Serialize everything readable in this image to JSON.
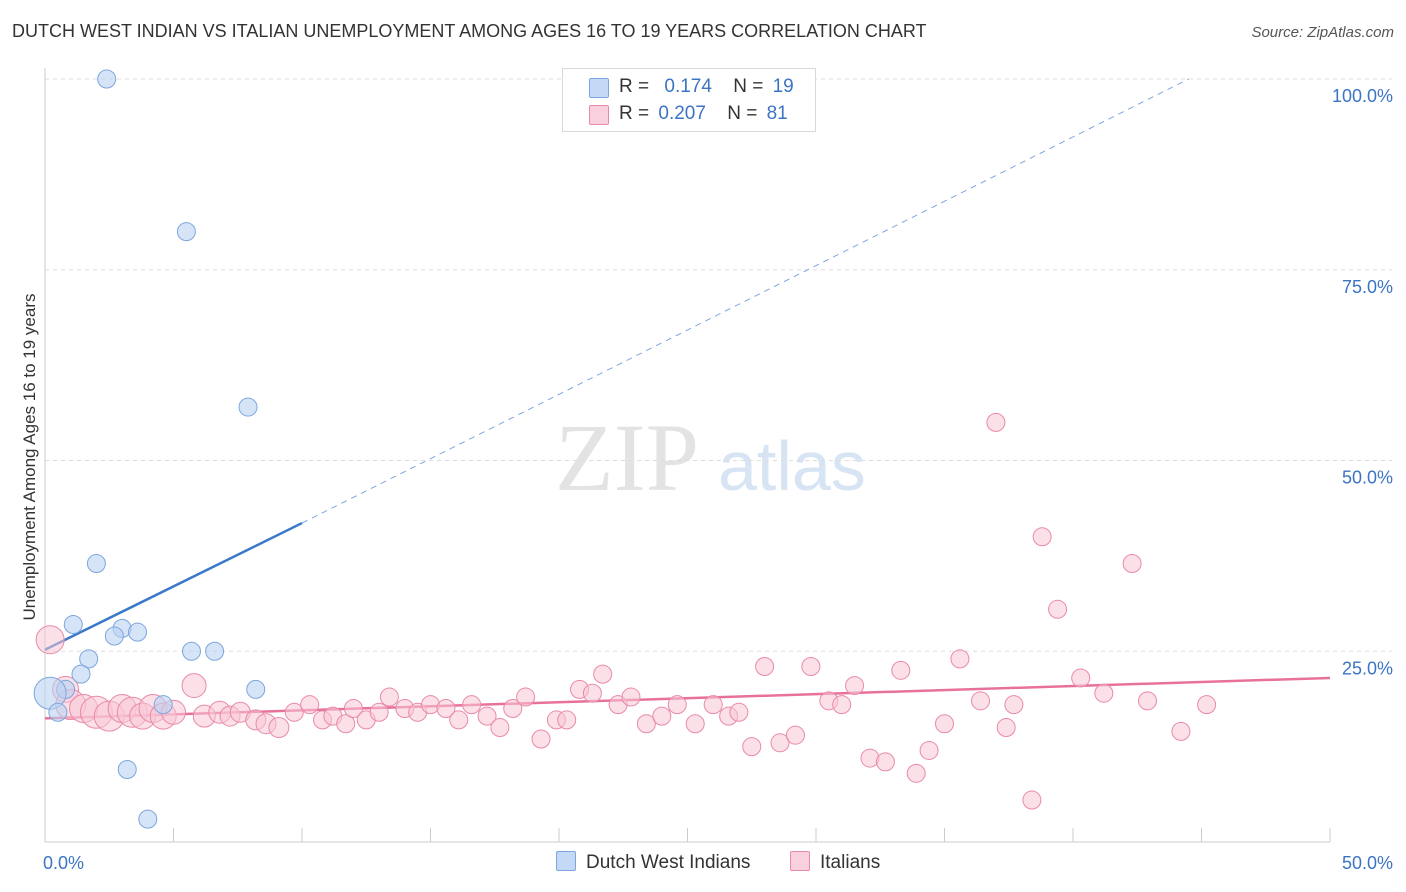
{
  "header": {
    "title": "DUTCH WEST INDIAN VS ITALIAN UNEMPLOYMENT AMONG AGES 16 TO 19 YEARS CORRELATION CHART",
    "source": "Source: ZipAtlas.com"
  },
  "watermark": {
    "zip": "ZIP",
    "atlas": "atlas"
  },
  "legend": {
    "rows": [
      {
        "r_label": "R =",
        "r_value": "0.174",
        "n_label": "N =",
        "n_value": "19",
        "color": "#a9c8f0"
      },
      {
        "r_label": "R =",
        "r_value": "0.207",
        "n_label": "N =",
        "n_value": "81",
        "color": "#f7b6c9"
      }
    ]
  },
  "colors": {
    "blue_fill": "#b9d2f2",
    "blue_stroke": "#7ea6dc",
    "blue_line": "#3a78c9",
    "pink_fill": "#f8c6d5",
    "pink_stroke": "#e98aa8",
    "pink_line": "#e8719b",
    "axis_text": "#3c74c4",
    "grid": "#dddddd"
  },
  "chart_data": {
    "type": "scatter",
    "title": "DUTCH WEST INDIAN VS ITALIAN UNEMPLOYMENT AMONG AGES 16 TO 19 YEARS CORRELATION CHART",
    "xlabel": "",
    "ylabel": "Unemployment Among Ages 16 to 19 years",
    "xlim": [
      0,
      50
    ],
    "ylim": [
      0,
      100
    ],
    "x_tick_labels": [
      "0.0%",
      "50.0%"
    ],
    "y_tick_labels": [
      "25.0%",
      "50.0%",
      "75.0%",
      "100.0%"
    ],
    "y_ticks": [
      25,
      50,
      75,
      100
    ],
    "series": [
      {
        "name": "Dutch West Indians",
        "r": 0.174,
        "n": 19,
        "trend": {
          "x0": 0,
          "y0": 25.2,
          "x1": 10,
          "y1": 41.8,
          "dash_to_x": 44.5,
          "dash_to_y": 100
        },
        "points": [
          [
            2.4,
            100
          ],
          [
            5.5,
            80
          ],
          [
            7.9,
            57
          ],
          [
            2.0,
            36.5
          ],
          [
            1.1,
            28.5
          ],
          [
            3.0,
            28
          ],
          [
            3.6,
            27.5
          ],
          [
            2.7,
            27
          ],
          [
            1.7,
            24
          ],
          [
            5.7,
            25
          ],
          [
            6.6,
            25
          ],
          [
            1.4,
            22
          ],
          [
            0.8,
            20
          ],
          [
            4.6,
            18
          ],
          [
            8.2,
            20
          ],
          [
            0.2,
            19.5
          ],
          [
            0.5,
            17
          ],
          [
            3.2,
            9.5
          ],
          [
            4.0,
            3
          ]
        ],
        "sizes": [
          9,
          9,
          9,
          9,
          9,
          9,
          9,
          9,
          9,
          9,
          9,
          9,
          9,
          9,
          9,
          16,
          9,
          9,
          9
        ]
      },
      {
        "name": "Italians",
        "r": 0.207,
        "n": 81,
        "trend": {
          "x0": 0,
          "y0": 16.2,
          "x1": 50,
          "y1": 21.5
        },
        "points": [
          [
            0.2,
            26.5
          ],
          [
            0.8,
            20
          ],
          [
            1.0,
            18
          ],
          [
            1.5,
            17.5
          ],
          [
            2.0,
            17
          ],
          [
            2.5,
            16.5
          ],
          [
            3.0,
            17.5
          ],
          [
            3.4,
            17
          ],
          [
            3.8,
            16.5
          ],
          [
            4.2,
            17.5
          ],
          [
            4.6,
            16.5
          ],
          [
            5.0,
            17
          ],
          [
            5.8,
            20.5
          ],
          [
            6.2,
            16.5
          ],
          [
            6.8,
            17
          ],
          [
            7.2,
            16.5
          ],
          [
            7.6,
            17
          ],
          [
            8.2,
            16
          ],
          [
            8.6,
            15.5
          ],
          [
            9.1,
            15
          ],
          [
            9.7,
            17
          ],
          [
            10.3,
            18
          ],
          [
            10.8,
            16
          ],
          [
            11.2,
            16.5
          ],
          [
            11.7,
            15.5
          ],
          [
            12.0,
            17.5
          ],
          [
            12.5,
            16
          ],
          [
            13.0,
            17
          ],
          [
            13.4,
            19
          ],
          [
            14.0,
            17.5
          ],
          [
            14.5,
            17
          ],
          [
            15.0,
            18
          ],
          [
            15.6,
            17.5
          ],
          [
            16.1,
            16
          ],
          [
            16.6,
            18
          ],
          [
            17.2,
            16.5
          ],
          [
            17.7,
            15
          ],
          [
            18.2,
            17.5
          ],
          [
            18.7,
            19
          ],
          [
            19.3,
            13.5
          ],
          [
            19.9,
            16
          ],
          [
            20.3,
            16
          ],
          [
            20.8,
            20
          ],
          [
            21.3,
            19.5
          ],
          [
            21.7,
            22
          ],
          [
            22.3,
            18
          ],
          [
            22.8,
            19
          ],
          [
            23.4,
            15.5
          ],
          [
            24.0,
            16.5
          ],
          [
            24.6,
            18
          ],
          [
            25.3,
            15.5
          ],
          [
            26.0,
            18
          ],
          [
            26.6,
            16.5
          ],
          [
            27.0,
            17
          ],
          [
            27.5,
            12.5
          ],
          [
            28.0,
            23
          ],
          [
            28.6,
            13
          ],
          [
            29.2,
            14
          ],
          [
            29.8,
            23
          ],
          [
            30.5,
            18.5
          ],
          [
            31.0,
            18
          ],
          [
            31.5,
            20.5
          ],
          [
            32.1,
            11
          ],
          [
            32.7,
            10.5
          ],
          [
            33.3,
            22.5
          ],
          [
            33.9,
            9
          ],
          [
            34.4,
            12
          ],
          [
            35.0,
            15.5
          ],
          [
            35.6,
            24
          ],
          [
            36.4,
            18.5
          ],
          [
            37.4,
            15
          ],
          [
            37.7,
            18
          ],
          [
            38.4,
            5.5
          ],
          [
            38.8,
            40
          ],
          [
            39.4,
            30.5
          ],
          [
            40.3,
            21.5
          ],
          [
            41.2,
            19.5
          ],
          [
            42.3,
            36.5
          ],
          [
            42.9,
            18.5
          ],
          [
            44.2,
            14.5
          ],
          [
            45.2,
            18
          ]
        ],
        "sizes": [
          14,
          13,
          15,
          14,
          16,
          15,
          14,
          15,
          13,
          14,
          13,
          12,
          12,
          11,
          11,
          10,
          10,
          10,
          10,
          10,
          9,
          9,
          9,
          9,
          9,
          9,
          9,
          9,
          9,
          9,
          9,
          9,
          9,
          9,
          9,
          9,
          9,
          9,
          9,
          9,
          9,
          9,
          9,
          9,
          9,
          9,
          9,
          9,
          9,
          9,
          9,
          9,
          9,
          9,
          9,
          9,
          9,
          9,
          9,
          9,
          9,
          9,
          9,
          9,
          9,
          9,
          9,
          9,
          9,
          9,
          9,
          9,
          9,
          9,
          9,
          9,
          9,
          9,
          9,
          9,
          9
        ]
      }
    ],
    "extra_italian_points": [
      [
        37.0,
        55
      ]
    ]
  },
  "bottom_legend": {
    "items": [
      {
        "label": "Dutch West Indians",
        "color": "#b9d2f2"
      },
      {
        "label": "Italians",
        "color": "#f8c6d5"
      }
    ]
  }
}
